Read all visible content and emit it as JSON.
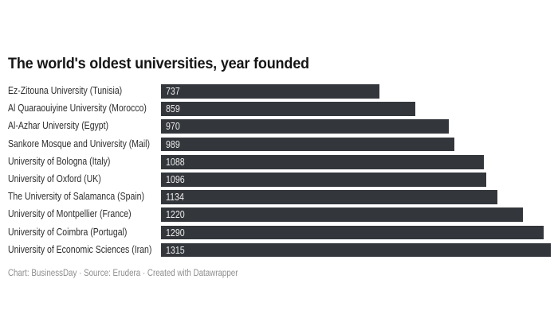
{
  "header": {
    "title": "The world's oldest universities, year founded"
  },
  "footer": {
    "credit": "Chart: BusinessDay · Source: Erudera · Created with Datawrapper"
  },
  "colors": {
    "background": "#ffffff",
    "bar": "#33363b",
    "title_text": "#151515",
    "category_text": "#2d2d2d",
    "value_text": "#ededed",
    "credit_text": "#8d8d8d"
  },
  "chart_data": {
    "type": "bar",
    "orientation": "horizontal",
    "title": "The world's oldest universities, year founded",
    "categories": [
      "Ez-Zitouna University (Tunisia)",
      "Al Quaraouiyine University (Morocco)",
      "Al-Azhar University (Egypt)",
      "Sankore Mosque and University (Mail)",
      "University of Bologna (Italy)",
      "University of Oxford (UK)",
      "The University of Salamanca (Spain)",
      "University of Montpellier (France)",
      "University of Coimbra (Portugal)",
      "University of Economic Sciences (Iran)"
    ],
    "values": [
      737,
      859,
      970,
      989,
      1088,
      1096,
      1134,
      1220,
      1290,
      1315
    ],
    "xlabel": "",
    "ylabel": "",
    "xlim": [
      0,
      1315
    ],
    "grid": false,
    "legend": "none",
    "value_labels": "inside-bar-left",
    "source_line": "Chart: BusinessDay · Source: Erudera · Created with Datawrapper"
  }
}
